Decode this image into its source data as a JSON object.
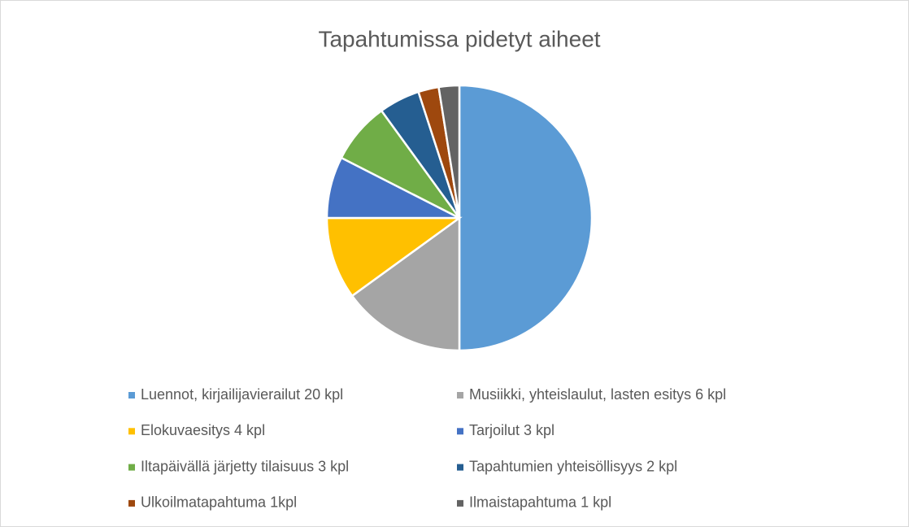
{
  "chart_data": {
    "type": "pie",
    "title": "Tapahtumissa pidetyt aiheet",
    "categories": [
      "Luennot, kirjailijavierailut 20 kpl",
      "Musiikki, yhteislaulut, lasten esitys 6 kpl",
      "Elokuvaesitys 4 kpl",
      "Tarjoilut 3 kpl",
      "Iltapäivällä järjetty tilaisuus 3 kpl",
      "Tapahtumien yhteisöllisyys 2 kpl",
      "Ulkoilmatapahtuma 1kpl",
      "Ilmaistapahtuma 1 kpl"
    ],
    "values": [
      20,
      6,
      4,
      3,
      3,
      2,
      1,
      1
    ],
    "colors": [
      "#5b9bd5",
      "#a5a5a5",
      "#ffc000",
      "#4472c4",
      "#70ad47",
      "#255e91",
      "#9e480e",
      "#636363"
    ]
  }
}
